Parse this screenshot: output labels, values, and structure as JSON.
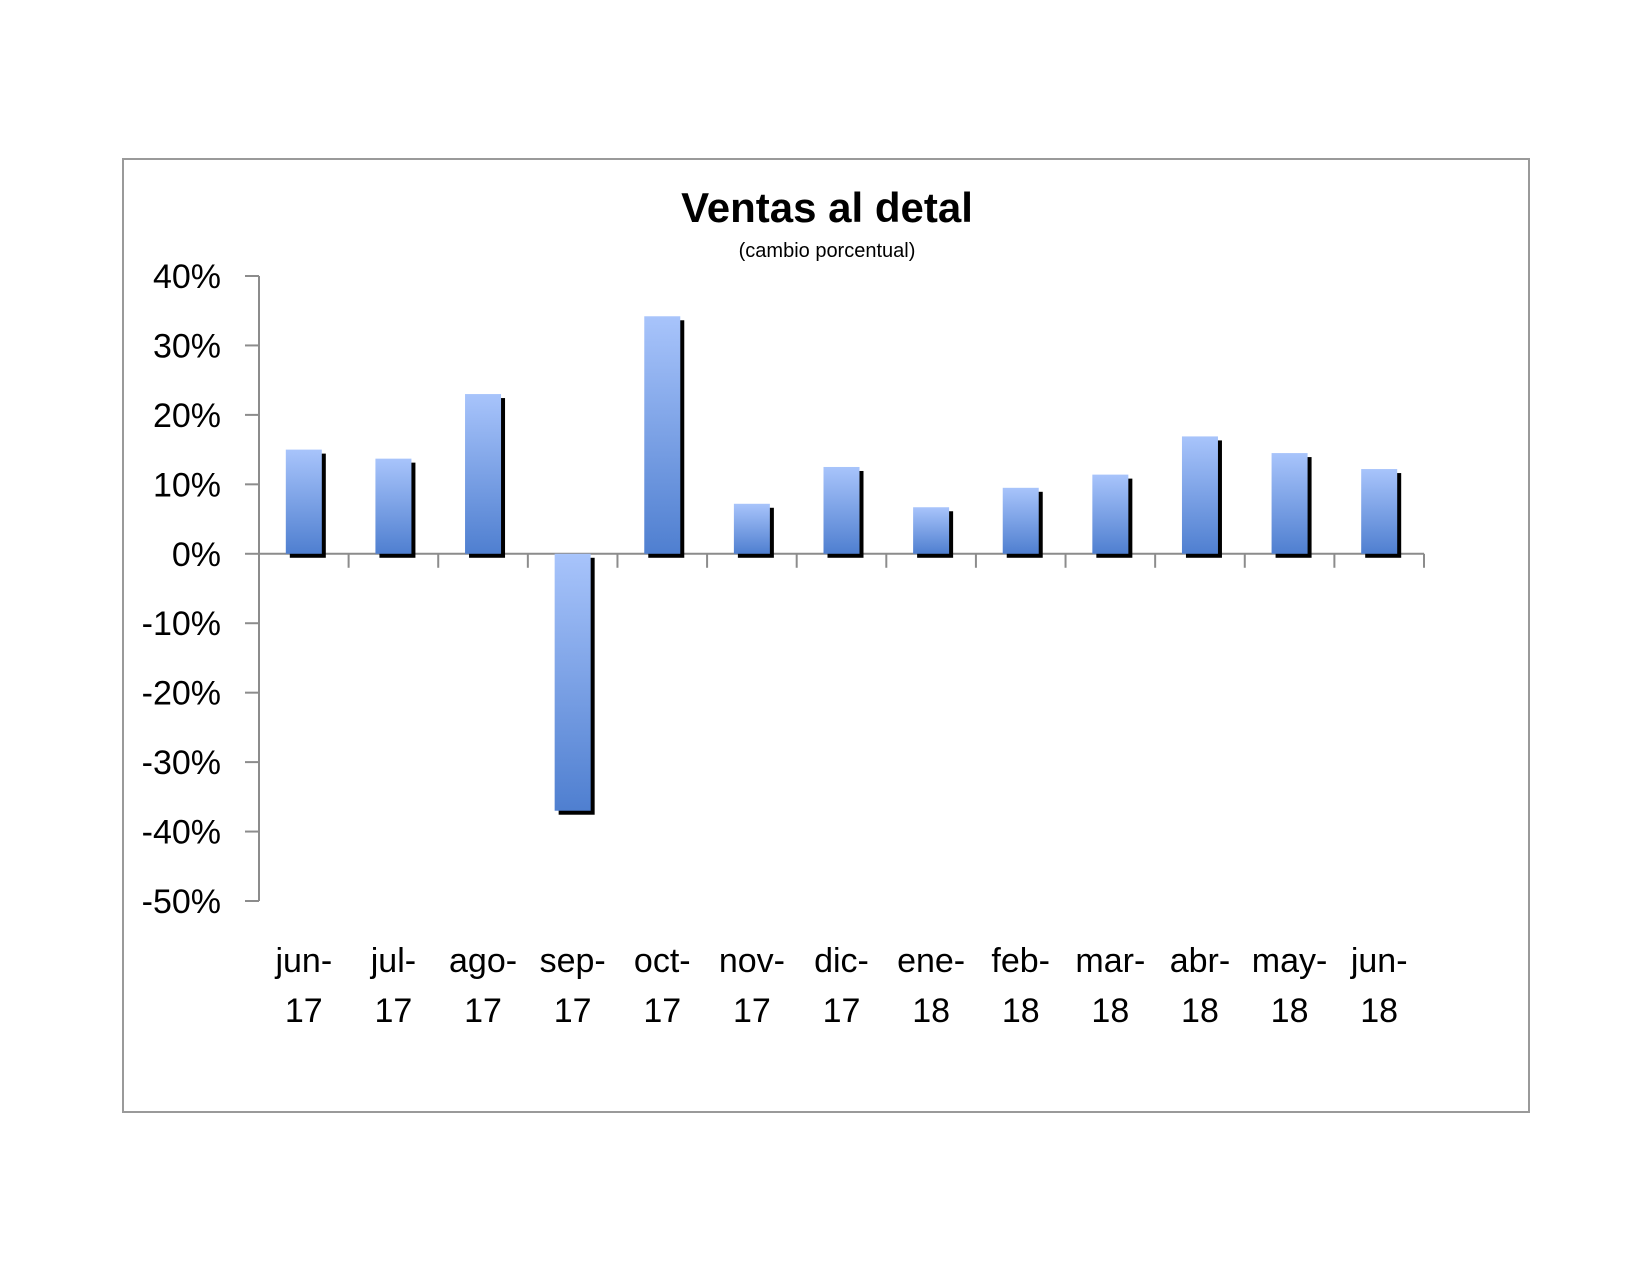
{
  "chart_data": {
    "type": "bar",
    "title": "Ventas al detal",
    "subtitle": "(cambio porcentual)",
    "categories": [
      [
        "jun-",
        "17"
      ],
      [
        "jul-",
        "17"
      ],
      [
        "ago-",
        "17"
      ],
      [
        "sep-",
        "17"
      ],
      [
        "oct-",
        "17"
      ],
      [
        "nov-",
        "17"
      ],
      [
        "dic-",
        "17"
      ],
      [
        "ene-",
        "18"
      ],
      [
        "feb-",
        "18"
      ],
      [
        "mar-",
        "18"
      ],
      [
        "abr-",
        "18"
      ],
      [
        "may-",
        "18"
      ],
      [
        "jun-",
        "18"
      ]
    ],
    "values": [
      15,
      13.7,
      23,
      -37,
      34.2,
      7.2,
      12.5,
      6.7,
      9.5,
      11.4,
      16.9,
      14.5,
      12.2
    ],
    "ylim": [
      -50,
      40
    ],
    "yticks": [
      40,
      30,
      20,
      10,
      0,
      -10,
      -20,
      -30,
      -40,
      -50
    ],
    "ytick_labels": [
      "40%",
      "30%",
      "20%",
      "10%",
      "0%",
      "-10%",
      "-20%",
      "-30%",
      "-40%",
      "-50%"
    ],
    "grid": false,
    "legend": "none",
    "colors": {
      "bar_top": "#a8c4fb",
      "bar_bottom": "#4f7fd0",
      "bar_shadow": "#000000",
      "axis": "#8c8c8c",
      "frame": "#9a9a9a"
    }
  }
}
